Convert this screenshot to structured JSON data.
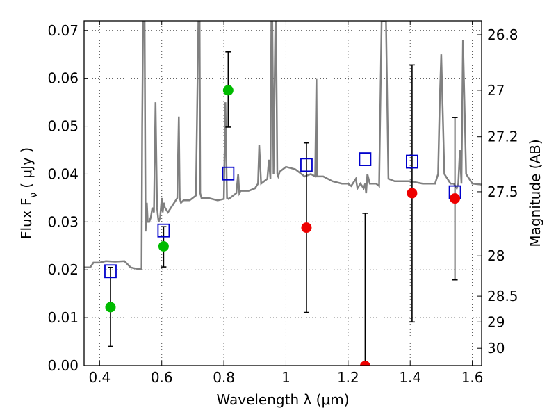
{
  "chart_data": {
    "type": "scatter",
    "xlabel": "Wavelength  λ (μm)",
    "ylabel": "Flux  F",
    "ylabel_sub": "ν",
    "ylabel_unit": "( μJy )",
    "y2label": "Magnitude (AB)",
    "xlim": [
      0.35,
      1.63
    ],
    "ylim": [
      0.0,
      0.072
    ],
    "grid": true,
    "x_ticks": [
      0.4,
      0.6,
      0.8,
      1.0,
      1.2,
      1.4,
      1.6
    ],
    "x_tick_labels": [
      "0.4",
      "0.6",
      "0.8",
      "1",
      "1.2",
      "1.4",
      "1.6"
    ],
    "y_ticks": [
      0.0,
      0.01,
      0.02,
      0.03,
      0.04,
      0.05,
      0.06,
      0.07
    ],
    "y_tick_labels": [
      "0.00",
      "0.01",
      "0.02",
      "0.03",
      "0.04",
      "0.05",
      "0.06",
      "0.07"
    ],
    "y2_ticks": [
      {
        "label": "26.8",
        "flux": 0.0691
      },
      {
        "label": "27",
        "flux": 0.0575
      },
      {
        "label": "27.2",
        "flux": 0.0478
      },
      {
        "label": "27.5",
        "flux": 0.0363
      },
      {
        "label": "28",
        "flux": 0.0229
      },
      {
        "label": "28.5",
        "flux": 0.0145
      },
      {
        "label": "29",
        "flux": 0.0091
      },
      {
        "label": "30",
        "flux": 0.0036
      }
    ],
    "series": [
      {
        "kind": "model-spectrum",
        "color": "#808080",
        "x": [
          0.35,
          0.37,
          0.38,
          0.4,
          0.42,
          0.45,
          0.48,
          0.5,
          0.52,
          0.535,
          0.537,
          0.54,
          0.545,
          0.548,
          0.552,
          0.555,
          0.56,
          0.565,
          0.57,
          0.575,
          0.58,
          0.585,
          0.588,
          0.59,
          0.595,
          0.6,
          0.603,
          0.607,
          0.61,
          0.62,
          0.64,
          0.65,
          0.655,
          0.658,
          0.662,
          0.67,
          0.69,
          0.71,
          0.718,
          0.722,
          0.724,
          0.728,
          0.735,
          0.75,
          0.78,
          0.8,
          0.805,
          0.81,
          0.815,
          0.82,
          0.84,
          0.846,
          0.85,
          0.854,
          0.88,
          0.9,
          0.91,
          0.914,
          0.92,
          0.94,
          0.945,
          0.95,
          0.953,
          0.956,
          0.96,
          0.966,
          0.968,
          0.972,
          0.975,
          0.98,
          1.0,
          1.03,
          1.05,
          1.06,
          1.08,
          1.094,
          1.098,
          1.1,
          1.104,
          1.12,
          1.15,
          1.18,
          1.2,
          1.21,
          1.225,
          1.23,
          1.24,
          1.25,
          1.255,
          1.258,
          1.262,
          1.27,
          1.29,
          1.3,
          1.308,
          1.315,
          1.318,
          1.322,
          1.33,
          1.35,
          1.4,
          1.44,
          1.48,
          1.49,
          1.495,
          1.5,
          1.51,
          1.53,
          1.54,
          1.55,
          1.555,
          1.56,
          1.565,
          1.57,
          1.58,
          1.6,
          1.63
        ],
        "y": [
          0.0205,
          0.0205,
          0.0215,
          0.0215,
          0.0218,
          0.0217,
          0.0218,
          0.0205,
          0.0202,
          0.0202,
          0.05,
          0.072,
          0.072,
          0.028,
          0.034,
          0.03,
          0.03,
          0.031,
          0.033,
          0.032,
          0.055,
          0.033,
          0.031,
          0.03,
          0.031,
          0.035,
          0.032,
          0.034,
          0.033,
          0.032,
          0.034,
          0.035,
          0.052,
          0.035,
          0.034,
          0.0345,
          0.0345,
          0.0355,
          0.072,
          0.072,
          0.036,
          0.035,
          0.035,
          0.035,
          0.0345,
          0.0348,
          0.055,
          0.035,
          0.0348,
          0.035,
          0.036,
          0.04,
          0.036,
          0.0365,
          0.0365,
          0.037,
          0.038,
          0.046,
          0.038,
          0.039,
          0.043,
          0.039,
          0.072,
          0.072,
          0.04,
          0.072,
          0.072,
          0.04,
          0.0395,
          0.0405,
          0.0415,
          0.041,
          0.04,
          0.0395,
          0.04,
          0.0395,
          0.06,
          0.0395,
          0.0395,
          0.0395,
          0.0385,
          0.038,
          0.038,
          0.0375,
          0.039,
          0.037,
          0.038,
          0.037,
          0.038,
          0.036,
          0.04,
          0.038,
          0.038,
          0.0375,
          0.072,
          0.072,
          0.072,
          0.072,
          0.039,
          0.0385,
          0.0385,
          0.038,
          0.038,
          0.04,
          0.055,
          0.065,
          0.04,
          0.038,
          0.038,
          0.037,
          0.038,
          0.045,
          0.038,
          0.068,
          0.04,
          0.038,
          0.0378
        ]
      },
      {
        "kind": "model-photometry",
        "marker": "open-square",
        "color": "#0000cc",
        "x": [
          0.435,
          0.606,
          0.814,
          1.066,
          1.255,
          1.406,
          1.544
        ],
        "y": [
          0.0197,
          0.0282,
          0.0401,
          0.0419,
          0.0431,
          0.0426,
          0.0362
        ]
      },
      {
        "kind": "detections",
        "marker": "filled-circle",
        "color": "#00bb00",
        "x": [
          0.435,
          0.606,
          0.814
        ],
        "y": [
          0.0122,
          0.0249,
          0.0575
        ],
        "yerr_low": [
          0.004,
          0.0206,
          0.0498
        ],
        "yerr_high": [
          0.0205,
          0.029,
          0.0655
        ]
      },
      {
        "kind": "upper-limits",
        "marker": "filled-circle",
        "color": "#ee0000",
        "x": [
          1.066,
          1.255,
          1.406,
          1.544
        ],
        "y": [
          0.0288,
          -0.0001,
          0.036,
          0.0349
        ],
        "yerr_low": [
          0.0111,
          -0.0005,
          0.0091,
          0.0179
        ],
        "yerr_high": [
          0.0465,
          0.0318,
          0.0628,
          0.0518
        ]
      }
    ]
  }
}
